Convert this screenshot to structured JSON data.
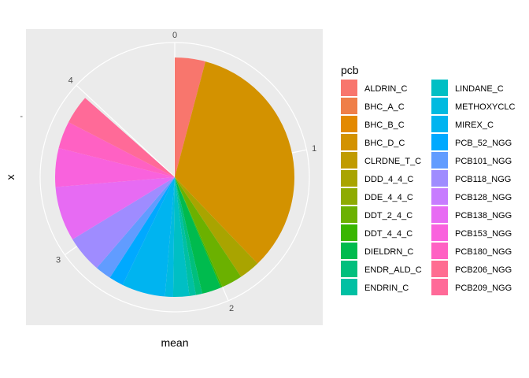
{
  "chart_data": {
    "type": "pie",
    "xlabel": "mean",
    "ylabel": "x",
    "y_tick_label": "-",
    "theta_range": [
      0,
      4.6
    ],
    "theta_ticks": [
      0,
      1,
      2,
      3,
      4
    ],
    "grid": true,
    "legend_title": "pcb",
    "legend_position": "right",
    "categories": [
      "ALDRIN_C",
      "BHC_A_C",
      "BHC_B_C",
      "BHC_D_C",
      "CLRDNE_T_C",
      "DDD_4_4_C",
      "DDE_4_4_C",
      "DDT_2_4_C",
      "DDT_4_4_C",
      "DIELDRN_C",
      "ENDR_ALD_C",
      "ENDRIN_C",
      "LINDANE_C",
      "METHOXYCLC",
      "MIREX_C",
      "PCB_52_NGG",
      "PCB101_NGG",
      "PCB118_NGG",
      "PCB128_NGG",
      "PCB138_NGG",
      "PCB153_NGG",
      "PCB180_NGG",
      "PCB206_NGG",
      "PCB209_NGG"
    ],
    "colors": [
      "#F8766D",
      "#EF7F49",
      "#E38900",
      "#D39200",
      "#C09B00",
      "#A9A400",
      "#8EAB00",
      "#6BB100",
      "#39B600",
      "#00BB4E",
      "#00BF7D",
      "#00C0A3",
      "#00BFC4",
      "#00BAE0",
      "#00B4F0",
      "#00A9FF",
      "#619CFF",
      "#9F8CFF",
      "#C77CFF",
      "#E76BF3",
      "#F962DD",
      "#FF61C3",
      "#FF6C91",
      "#FF6A98"
    ],
    "values": [
      0.19,
      0.0,
      0.0,
      1.55,
      0.0,
      0.13,
      0.0,
      0.13,
      0.01,
      0.12,
      0.04,
      0.04,
      0.1,
      0.05,
      0.27,
      0.09,
      0.1,
      0.23,
      0.0,
      0.34,
      0.24,
      0.17,
      0.0,
      0.18
    ]
  }
}
